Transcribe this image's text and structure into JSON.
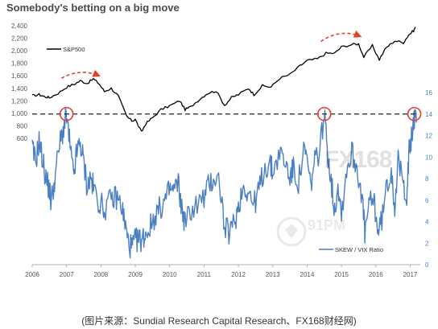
{
  "title": "Somebody's betting on a big move",
  "caption": "(图片来源：Sundial Research Capital Research、FX168财经网)",
  "watermarks": {
    "fx": "FX168",
    "site": "91PM"
  },
  "colors": {
    "spx": "#000000",
    "ratio": "#4a7fc4",
    "arrow": "#e2402a",
    "circle": "#e2402a",
    "dashed": "#222222",
    "axis_text": "#555555",
    "right_axis_text": "#4a7fc4"
  },
  "chart_data": {
    "type": "line",
    "x_ticks": [
      "2006",
      "2007",
      "2008",
      "2009",
      "2010",
      "2011",
      "2012",
      "2013",
      "2014",
      "2015",
      "2016",
      "2017"
    ],
    "x_range": [
      2006,
      2017.2
    ],
    "left_axis": {
      "ticks": [
        "2,400",
        "2,200",
        "2,000",
        "1,800",
        "1,600",
        "1,400",
        "1,200",
        "1,000",
        "800",
        "600"
      ],
      "range": [
        600,
        2400
      ]
    },
    "right_axis": {
      "ticks": [
        "16",
        "14",
        "12",
        "10",
        "8",
        "6",
        "4",
        "2",
        "0"
      ],
      "range": [
        0,
        16
      ]
    },
    "series": [
      {
        "name": "S&P500",
        "axis": "left",
        "points": [
          [
            2006.0,
            1280
          ],
          [
            2006.2,
            1300
          ],
          [
            2006.35,
            1270
          ],
          [
            2006.5,
            1250
          ],
          [
            2006.75,
            1320
          ],
          [
            2007.0,
            1420
          ],
          [
            2007.2,
            1460
          ],
          [
            2007.4,
            1520
          ],
          [
            2007.6,
            1480
          ],
          [
            2007.78,
            1550
          ],
          [
            2007.95,
            1470
          ],
          [
            2008.1,
            1350
          ],
          [
            2008.3,
            1400
          ],
          [
            2008.5,
            1280
          ],
          [
            2008.75,
            950
          ],
          [
            2008.9,
            880
          ],
          [
            2009.0,
            900
          ],
          [
            2009.18,
            700
          ],
          [
            2009.3,
            830
          ],
          [
            2009.5,
            930
          ],
          [
            2009.75,
            1060
          ],
          [
            2010.0,
            1120
          ],
          [
            2010.3,
            1200
          ],
          [
            2010.45,
            1060
          ],
          [
            2010.6,
            1100
          ],
          [
            2010.9,
            1240
          ],
          [
            2011.1,
            1320
          ],
          [
            2011.35,
            1360
          ],
          [
            2011.6,
            1130
          ],
          [
            2011.8,
            1250
          ],
          [
            2012.0,
            1300
          ],
          [
            2012.3,
            1400
          ],
          [
            2012.45,
            1300
          ],
          [
            2012.7,
            1440
          ],
          [
            2012.95,
            1420
          ],
          [
            2013.2,
            1560
          ],
          [
            2013.5,
            1620
          ],
          [
            2013.8,
            1760
          ],
          [
            2014.0,
            1840
          ],
          [
            2014.3,
            1870
          ],
          [
            2014.55,
            1960
          ],
          [
            2014.8,
            1960
          ],
          [
            2015.0,
            2060
          ],
          [
            2015.3,
            2100
          ],
          [
            2015.5,
            2110
          ],
          [
            2015.65,
            1900
          ],
          [
            2015.9,
            2080
          ],
          [
            2016.1,
            1860
          ],
          [
            2016.3,
            2050
          ],
          [
            2016.55,
            2160
          ],
          [
            2016.8,
            2130
          ],
          [
            2016.95,
            2250
          ],
          [
            2017.1,
            2320
          ],
          [
            2017.15,
            2380
          ]
        ]
      },
      {
        "name": "SKEW / VIX Ratio",
        "axis": "right",
        "points": [
          [
            2006.0,
            10.8
          ],
          [
            2006.1,
            9.5
          ],
          [
            2006.2,
            11.5
          ],
          [
            2006.3,
            9.8
          ],
          [
            2006.4,
            8.0
          ],
          [
            2006.5,
            7.0
          ],
          [
            2006.55,
            5.8
          ],
          [
            2006.65,
            7.8
          ],
          [
            2006.8,
            11.2
          ],
          [
            2006.9,
            12.5
          ],
          [
            2007.0,
            13.8
          ],
          [
            2007.1,
            11.0
          ],
          [
            2007.2,
            8.2
          ],
          [
            2007.3,
            10.5
          ],
          [
            2007.4,
            11.3
          ],
          [
            2007.5,
            9.5
          ],
          [
            2007.6,
            7.2
          ],
          [
            2007.7,
            8.0
          ],
          [
            2007.8,
            7.0
          ],
          [
            2007.95,
            5.8
          ],
          [
            2008.1,
            5.2
          ],
          [
            2008.3,
            6.0
          ],
          [
            2008.45,
            6.3
          ],
          [
            2008.6,
            5.5
          ],
          [
            2008.7,
            3.8
          ],
          [
            2008.8,
            2.0
          ],
          [
            2008.9,
            1.6
          ],
          [
            2009.0,
            2.2
          ],
          [
            2009.1,
            2.3
          ],
          [
            2009.2,
            2.4
          ],
          [
            2009.3,
            2.9
          ],
          [
            2009.45,
            3.6
          ],
          [
            2009.6,
            4.8
          ],
          [
            2009.75,
            5.3
          ],
          [
            2009.9,
            6.2
          ],
          [
            2010.0,
            7.0
          ],
          [
            2010.1,
            6.8
          ],
          [
            2010.25,
            7.6
          ],
          [
            2010.35,
            5.2
          ],
          [
            2010.45,
            3.9
          ],
          [
            2010.6,
            5.0
          ],
          [
            2010.8,
            5.6
          ],
          [
            2011.0,
            6.2
          ],
          [
            2011.15,
            7.5
          ],
          [
            2011.3,
            8.1
          ],
          [
            2011.45,
            7.8
          ],
          [
            2011.6,
            3.3
          ],
          [
            2011.75,
            3.0
          ],
          [
            2011.9,
            4.0
          ],
          [
            2012.0,
            5.5
          ],
          [
            2012.15,
            7.3
          ],
          [
            2012.3,
            6.8
          ],
          [
            2012.45,
            5.5
          ],
          [
            2012.6,
            7.0
          ],
          [
            2012.75,
            8.8
          ],
          [
            2012.9,
            9.5
          ],
          [
            2013.0,
            8.6
          ],
          [
            2013.2,
            10.5
          ],
          [
            2013.35,
            9.5
          ],
          [
            2013.5,
            8.2
          ],
          [
            2013.6,
            8.9
          ],
          [
            2013.75,
            7.6
          ],
          [
            2013.9,
            10.5
          ],
          [
            2014.0,
            9.8
          ],
          [
            2014.1,
            7.2
          ],
          [
            2014.2,
            9.2
          ],
          [
            2014.35,
            10.6
          ],
          [
            2014.5,
            13.9
          ],
          [
            2014.6,
            10.5
          ],
          [
            2014.7,
            7.8
          ],
          [
            2014.8,
            5.0
          ],
          [
            2014.9,
            7.5
          ],
          [
            2015.0,
            4.8
          ],
          [
            2015.15,
            8.8
          ],
          [
            2015.3,
            10.5
          ],
          [
            2015.45,
            9.0
          ],
          [
            2015.6,
            6.5
          ],
          [
            2015.68,
            2.8
          ],
          [
            2015.8,
            5.5
          ],
          [
            2015.95,
            6.0
          ],
          [
            2016.05,
            3.2
          ],
          [
            2016.15,
            3.8
          ],
          [
            2016.3,
            6.8
          ],
          [
            2016.45,
            9.0
          ],
          [
            2016.55,
            5.5
          ],
          [
            2016.65,
            9.5
          ],
          [
            2016.8,
            7.5
          ],
          [
            2016.9,
            6.5
          ],
          [
            2016.97,
            10.5
          ],
          [
            2017.05,
            12.0
          ],
          [
            2017.12,
            13.8
          ],
          [
            2017.18,
            13.2
          ]
        ]
      }
    ],
    "annotations": {
      "dashed_level_right_axis": 14,
      "circled_peaks": [
        2007.0,
        2014.5,
        2017.12
      ],
      "arrows": [
        {
          "from": [
            2006.85,
            1560
          ],
          "to": [
            2007.95,
            1600
          ]
        },
        {
          "from": [
            2014.4,
            2150
          ],
          "to": [
            2015.55,
            2230
          ]
        }
      ]
    },
    "legend": [
      {
        "label": "S&P500",
        "placement": "top-left"
      },
      {
        "label": "SKEW / VIX Ratio",
        "placement": "bottom-right"
      }
    ],
    "grid": false
  }
}
